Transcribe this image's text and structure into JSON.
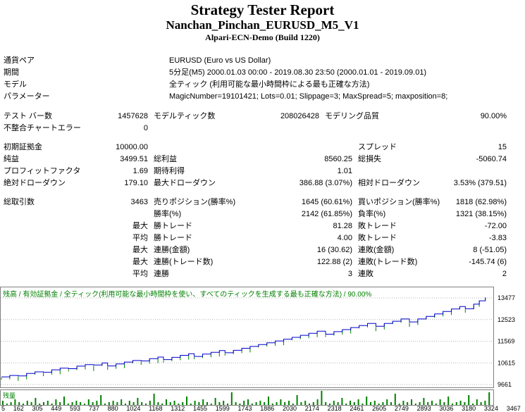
{
  "header": {
    "title": "Strategy Tester Report",
    "ea_name": "Nanchan_Pinchan_EURUSD_M5_V1",
    "server": "Alpari-ECN-Demo (Build 1220)"
  },
  "settings": [
    {
      "label": "通貨ペア",
      "value": "EURUSD (Euro vs US Dollar)"
    },
    {
      "label": "期間",
      "value": "5分足(M5) 2000.01.03 00:00 - 2019.08.30 23:50 (2000.01.01 - 2019.09.01)"
    },
    {
      "label": "モデル",
      "value": "全ティック (利用可能な最小時間枠による最も正確な方法)"
    },
    {
      "label": "パラメーター",
      "value": "MagicNumber=19101421; Lots=0.01; Slippage=3; MaxSpread=5; maxposition=8;"
    }
  ],
  "test_info": [
    [
      "テスト バー数",
      "1457628",
      "モデルティック数",
      "208026428",
      "モデリング品質",
      "90.00%"
    ],
    [
      "不整合チャートエラー",
      "0",
      "",
      "",
      "",
      ""
    ]
  ],
  "results": [
    [
      "初期証拠金",
      "10000.00",
      "",
      "",
      "スプレッド",
      "15"
    ],
    [
      "純益",
      "3499.51",
      "総利益",
      "8560.25",
      "総損失",
      "-5060.74"
    ],
    [
      "プロフィットファクタ",
      "1.69",
      "期待利得",
      "1.01",
      "",
      ""
    ],
    [
      "絶対ドローダウン",
      "179.10",
      "最大ドローダウン",
      "386.88 (3.07%)",
      "相対ドローダウン",
      "3.53% (379.51)"
    ]
  ],
  "trade_stats": [
    [
      "総取引数",
      "3463",
      "売りポジション(勝率%)",
      "1645 (60.61%)",
      "買いポジション(勝率%)",
      "1818 (62.98%)"
    ],
    [
      "",
      "",
      "勝率(%)",
      "2142 (61.85%)",
      "負率(%)",
      "1321 (38.15%)"
    ],
    [
      "",
      "最大",
      "勝トレード",
      "81.28",
      "敗トレード",
      "-72.00"
    ],
    [
      "",
      "平均",
      "勝トレード",
      "4.00",
      "敗トレード",
      "-3.83"
    ],
    [
      "",
      "最大",
      "連勝(金額)",
      "16 (30.62)",
      "連敗(金額)",
      "8 (-51.05)"
    ],
    [
      "",
      "最大",
      "連勝(トレード数)",
      "122.88 (2)",
      "連敗(トレード数)",
      "-145.74 (6)"
    ],
    [
      "",
      "平均",
      "連勝",
      "3",
      "連敗",
      "2"
    ]
  ],
  "chart_data": {
    "type": "line",
    "title": "",
    "caption": "残高 / 有効証拠金 / 全ティック(利用可能な最小時間枠を使い、すべてのティックを生成する最も正確な方法) / 90.00%",
    "legend_position": "top-left",
    "grid": "horizontal-dotted",
    "y_ticks": [
      13477,
      12523,
      11569,
      10615,
      9661
    ],
    "x_ticks": [
      5,
      162,
      305,
      449,
      593,
      737,
      880,
      1024,
      1168,
      1312,
      1455,
      1599,
      1743,
      1886,
      2030,
      2174,
      2318,
      2461,
      2605,
      2749,
      2893,
      3036,
      3180,
      3324,
      3467
    ],
    "xlim": [
      0,
      3500
    ],
    "ylim": [
      9550,
      13960
    ],
    "x": [
      0,
      60,
      120,
      180,
      240,
      300,
      360,
      420,
      480,
      540,
      600,
      660,
      720,
      760,
      820,
      880,
      940,
      1000,
      1060,
      1120,
      1160,
      1220,
      1280,
      1340,
      1380,
      1440,
      1500,
      1560,
      1600,
      1660,
      1720,
      1780,
      1840,
      1900,
      1960,
      2020,
      2080,
      2140,
      2200,
      2260,
      2320,
      2380,
      2440,
      2500,
      2560,
      2620,
      2680,
      2740,
      2800,
      2860,
      2920,
      2980,
      3040,
      3100,
      3160,
      3220,
      3280,
      3320,
      3380,
      3420,
      3463
    ],
    "series": [
      {
        "name": "残高",
        "color": "#0000cc",
        "values": [
          10000,
          10060,
          10040,
          10150,
          10220,
          10200,
          10310,
          10380,
          10360,
          10470,
          10540,
          10520,
          10610,
          10480,
          10570,
          10650,
          10720,
          10700,
          10800,
          10870,
          10760,
          10860,
          10950,
          11020,
          10900,
          11000,
          11080,
          11160,
          11060,
          11170,
          11260,
          11340,
          11420,
          11500,
          11580,
          11660,
          11740,
          11830,
          11920,
          12010,
          11880,
          11990,
          12080,
          12170,
          12260,
          12350,
          12230,
          12350,
          12450,
          12550,
          12420,
          12550,
          12660,
          12770,
          12880,
          12990,
          13100,
          13000,
          13200,
          13350,
          13500
        ]
      }
    ],
    "equity_tick_color": "#008000",
    "volume": {
      "label": "残量",
      "color": "#008000",
      "values": [
        3,
        1,
        2,
        4,
        2,
        1,
        3,
        2,
        5,
        1,
        2,
        3,
        1,
        4,
        2,
        6,
        1,
        2,
        3,
        2,
        1,
        4,
        2,
        3,
        7,
        1,
        2,
        3,
        2,
        4,
        1,
        3,
        2,
        5,
        2,
        1,
        3,
        8,
        2,
        1,
        4,
        2,
        3,
        1,
        2,
        6,
        1,
        3,
        2,
        4,
        2,
        1,
        5,
        2,
        3,
        1,
        9,
        2,
        1,
        3,
        4,
        1,
        2,
        3,
        2,
        6,
        1,
        2,
        4,
        2,
        3,
        1,
        7,
        2,
        3,
        1,
        2,
        4,
        10,
        2,
        1,
        3,
        2,
        5,
        1,
        3,
        2,
        4,
        1,
        6,
        2,
        3,
        1,
        2,
        4,
        2,
        8,
        1,
        3,
        2,
        4,
        1,
        2,
        5,
        2,
        3,
        1,
        4,
        2,
        6,
        1,
        2,
        3,
        2,
        7,
        1,
        4,
        2,
        3,
        9
      ]
    }
  }
}
